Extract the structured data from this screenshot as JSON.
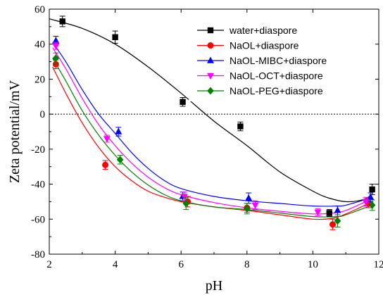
{
  "chart_data": {
    "type": "scatter",
    "title": "",
    "xlabel": "pH",
    "ylabel": "Zeta potential/mV",
    "xlim": [
      2,
      12
    ],
    "ylim": [
      -80,
      60
    ],
    "xticks": [
      2,
      4,
      6,
      8,
      10,
      12
    ],
    "yticks": [
      -80,
      -60,
      -40,
      -20,
      0,
      20,
      40,
      60
    ],
    "zero_line": "dotted",
    "grid": false,
    "legend_position": "top-right",
    "series": [
      {
        "name": "water+diaspore",
        "color": "#000000",
        "marker": "square",
        "x": [
          2.4,
          4.0,
          6.05,
          7.8,
          10.5,
          11.8
        ],
        "y": [
          53,
          44,
          7,
          -7,
          -56.5,
          -43
        ],
        "err": [
          3,
          3.5,
          2.5,
          2.5,
          2,
          3
        ],
        "fit_x": [
          2.0,
          3.0,
          4.0,
          5.0,
          6.0,
          7.0,
          8.0,
          9.0,
          10.0,
          10.5,
          11.0,
          11.5,
          11.8
        ],
        "fit_y": [
          54.5,
          49,
          40,
          27,
          12,
          -4,
          -18,
          -33,
          -44,
          -48,
          -50,
          -49,
          -46
        ]
      },
      {
        "name": "NaOL+diaspore",
        "color": "#ff0000",
        "marker": "circle",
        "x": [
          2.2,
          3.7,
          6.2,
          8.0,
          10.6,
          11.7
        ],
        "y": [
          28.5,
          -29,
          -50,
          -53.5,
          -63,
          -51
        ],
        "err": [
          2.5,
          2.5,
          3,
          2.5,
          3,
          2.5
        ],
        "fit_x": [
          2.1,
          2.5,
          3.0,
          3.5,
          4.0,
          4.5,
          5.0,
          5.5,
          6.0,
          7.0,
          8.0,
          9.0,
          10.0,
          10.6,
          11.0,
          11.7
        ],
        "fit_y": [
          27,
          12,
          -5,
          -19,
          -30,
          -38,
          -44,
          -47.5,
          -50,
          -53,
          -55,
          -57.5,
          -60,
          -59.5,
          -57,
          -51
        ]
      },
      {
        "name": "NaOL-MIBC+diaspore",
        "color": "#0000ff",
        "marker": "triangle-up",
        "x": [
          2.2,
          4.1,
          6.05,
          8.05,
          10.75,
          11.75
        ],
        "y": [
          42,
          -10,
          -47,
          -48,
          -55,
          -47.5
        ],
        "err": [
          2.5,
          2.5,
          2.5,
          3,
          2.5,
          2.5
        ],
        "fit_x": [
          2.1,
          2.5,
          3.0,
          3.5,
          4.0,
          4.5,
          5.0,
          5.5,
          6.0,
          7.0,
          8.0,
          9.0,
          10.0,
          10.75,
          11.0,
          11.75
        ],
        "fit_y": [
          41,
          30,
          14,
          0,
          -11,
          -22,
          -31,
          -38,
          -42.5,
          -47,
          -49.5,
          -51,
          -52.5,
          -52.5,
          -52,
          -48
        ]
      },
      {
        "name": "NaOL-OCT+diaspore",
        "color": "#ff00ff",
        "marker": "triangle-down",
        "x": [
          2.2,
          3.75,
          6.1,
          8.25,
          10.15,
          11.6
        ],
        "y": [
          39,
          -14,
          -47,
          -52,
          -56,
          -50
        ],
        "err": [
          2,
          2,
          2.5,
          2.5,
          2,
          2.5
        ],
        "fit_x": [
          2.1,
          2.5,
          3.0,
          3.5,
          4.0,
          4.5,
          5.0,
          5.5,
          6.0,
          7.0,
          8.0,
          9.0,
          10.0,
          10.6,
          11.0,
          11.6
        ],
        "fit_y": [
          38,
          26,
          9,
          -6,
          -18,
          -28,
          -36,
          -42,
          -46,
          -50.5,
          -53.5,
          -55.5,
          -57,
          -56.5,
          -55,
          -50
        ]
      },
      {
        "name": "NaOL-PEG+diaspore",
        "color": "#008000",
        "marker": "diamond",
        "x": [
          2.2,
          4.15,
          6.15,
          8.0,
          10.75,
          11.8
        ],
        "y": [
          32,
          -26,
          -51,
          -54,
          -61,
          -52
        ],
        "err": [
          3,
          2.5,
          3.5,
          3,
          3.5,
          3
        ],
        "fit_x": [
          2.1,
          2.5,
          3.0,
          3.5,
          4.0,
          4.5,
          5.0,
          5.5,
          6.0,
          7.0,
          8.0,
          9.0,
          10.0,
          10.75,
          11.0,
          11.8
        ],
        "fit_y": [
          32,
          19,
          2,
          -12,
          -23.5,
          -33,
          -40.5,
          -46,
          -49.5,
          -53,
          -54.5,
          -56.5,
          -58.5,
          -58.5,
          -57.5,
          -52
        ]
      }
    ]
  }
}
